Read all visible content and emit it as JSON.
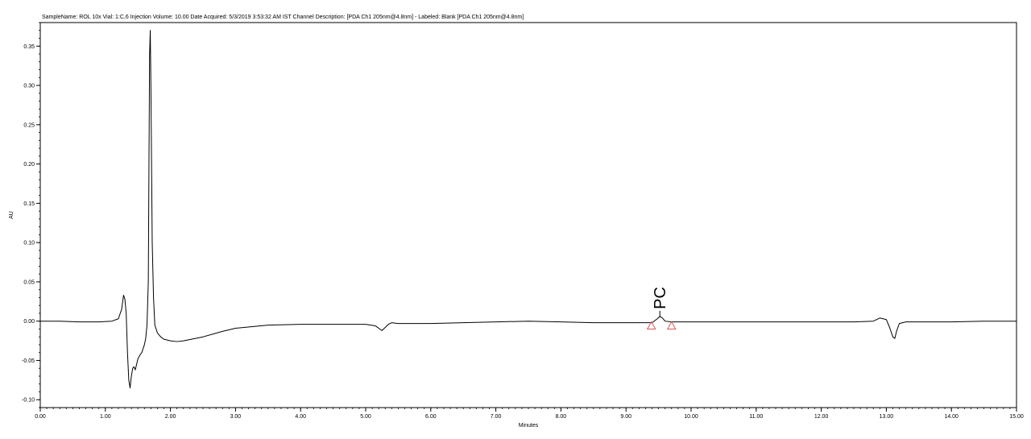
{
  "chart_data": {
    "type": "line",
    "title": "SampleName: ROL 10x Vial: 1:C,6 Injection Volume: 10.00 Date Acquired: 5/3/2019 3:53:32 AM IST Channel Description: [PDA Ch1 205nm@4.8nm] - Labeled: Blank [PDA Ch1 205nm@4.8nm]",
    "xlabel": "Minutes",
    "ylabel": "AU",
    "xlim": [
      0,
      15
    ],
    "ylim": [
      -0.11,
      0.38
    ],
    "x_ticks": [
      "0.00",
      "1.00",
      "2.00",
      "3.00",
      "4.00",
      "5.00",
      "6.00",
      "7.00",
      "8.00",
      "9.00",
      "10.00",
      "11.00",
      "12.00",
      "13.00",
      "14.00",
      "15.00"
    ],
    "x_tick_values": [
      0,
      1,
      2,
      3,
      4,
      5,
      6,
      7,
      8,
      9,
      10,
      11,
      12,
      13,
      14,
      15
    ],
    "y_ticks": [
      "-0.10",
      "-0.05",
      "0.00",
      "0.05",
      "0.10",
      "0.15",
      "0.20",
      "0.25",
      "0.30",
      "0.35"
    ],
    "y_tick_values": [
      -0.1,
      -0.05,
      0.0,
      0.05,
      0.1,
      0.15,
      0.2,
      0.25,
      0.3,
      0.35
    ],
    "grid": false,
    "series": [
      {
        "color": "#000000",
        "x": [
          0.0,
          0.3,
          0.6,
          0.9,
          1.1,
          1.2,
          1.25,
          1.28,
          1.3,
          1.32,
          1.34,
          1.36,
          1.38,
          1.4,
          1.42,
          1.44,
          1.46,
          1.48,
          1.5,
          1.52,
          1.54,
          1.56,
          1.58,
          1.6,
          1.62,
          1.64,
          1.66,
          1.67,
          1.68,
          1.69,
          1.7,
          1.71,
          1.72,
          1.74,
          1.76,
          1.8,
          1.85,
          1.9,
          2.0,
          2.1,
          2.2,
          2.5,
          2.8,
          3.0,
          3.5,
          4.0,
          4.5,
          5.0,
          5.15,
          5.25,
          5.3,
          5.35,
          5.4,
          5.5,
          5.7,
          6.0,
          6.5,
          7.0,
          7.5,
          8.0,
          8.5,
          9.0,
          9.4,
          9.48,
          9.52,
          9.56,
          9.6,
          9.7,
          10.0,
          10.5,
          11.0,
          11.5,
          12.0,
          12.5,
          12.8,
          12.9,
          13.0,
          13.05,
          13.1,
          13.13,
          13.16,
          13.2,
          13.3,
          13.5,
          14.0,
          14.5,
          15.0
        ],
        "y": [
          0.0,
          0.0,
          -0.001,
          -0.001,
          0.0,
          0.003,
          0.015,
          0.033,
          0.028,
          0.01,
          -0.04,
          -0.075,
          -0.085,
          -0.07,
          -0.06,
          -0.058,
          -0.062,
          -0.055,
          -0.048,
          -0.045,
          -0.042,
          -0.04,
          -0.035,
          -0.03,
          -0.022,
          -0.005,
          0.05,
          0.2,
          0.34,
          0.37,
          0.3,
          0.2,
          0.1,
          0.03,
          -0.005,
          -0.015,
          -0.02,
          -0.023,
          -0.025,
          -0.026,
          -0.025,
          -0.02,
          -0.013,
          -0.009,
          -0.005,
          -0.004,
          -0.004,
          -0.004,
          -0.006,
          -0.012,
          -0.008,
          -0.004,
          -0.002,
          -0.003,
          -0.003,
          -0.003,
          -0.002,
          -0.001,
          0.0,
          -0.001,
          -0.002,
          -0.002,
          -0.002,
          0.003,
          0.006,
          0.004,
          0.0,
          -0.001,
          -0.001,
          -0.001,
          -0.001,
          -0.001,
          -0.001,
          -0.001,
          0.0,
          0.004,
          0.002,
          -0.008,
          -0.02,
          -0.022,
          -0.012,
          -0.003,
          -0.001,
          -0.001,
          -0.001,
          0.0,
          0.0
        ]
      }
    ],
    "annotations": [
      {
        "label": "PC",
        "x": 9.52,
        "y": 0.005
      }
    ],
    "integration_markers": [
      {
        "x": 9.39,
        "y": -0.006
      },
      {
        "x": 9.7,
        "y": -0.006
      }
    ],
    "colors": {
      "trace": "#000000",
      "marker": "#e05555",
      "axis": "#000000"
    }
  }
}
